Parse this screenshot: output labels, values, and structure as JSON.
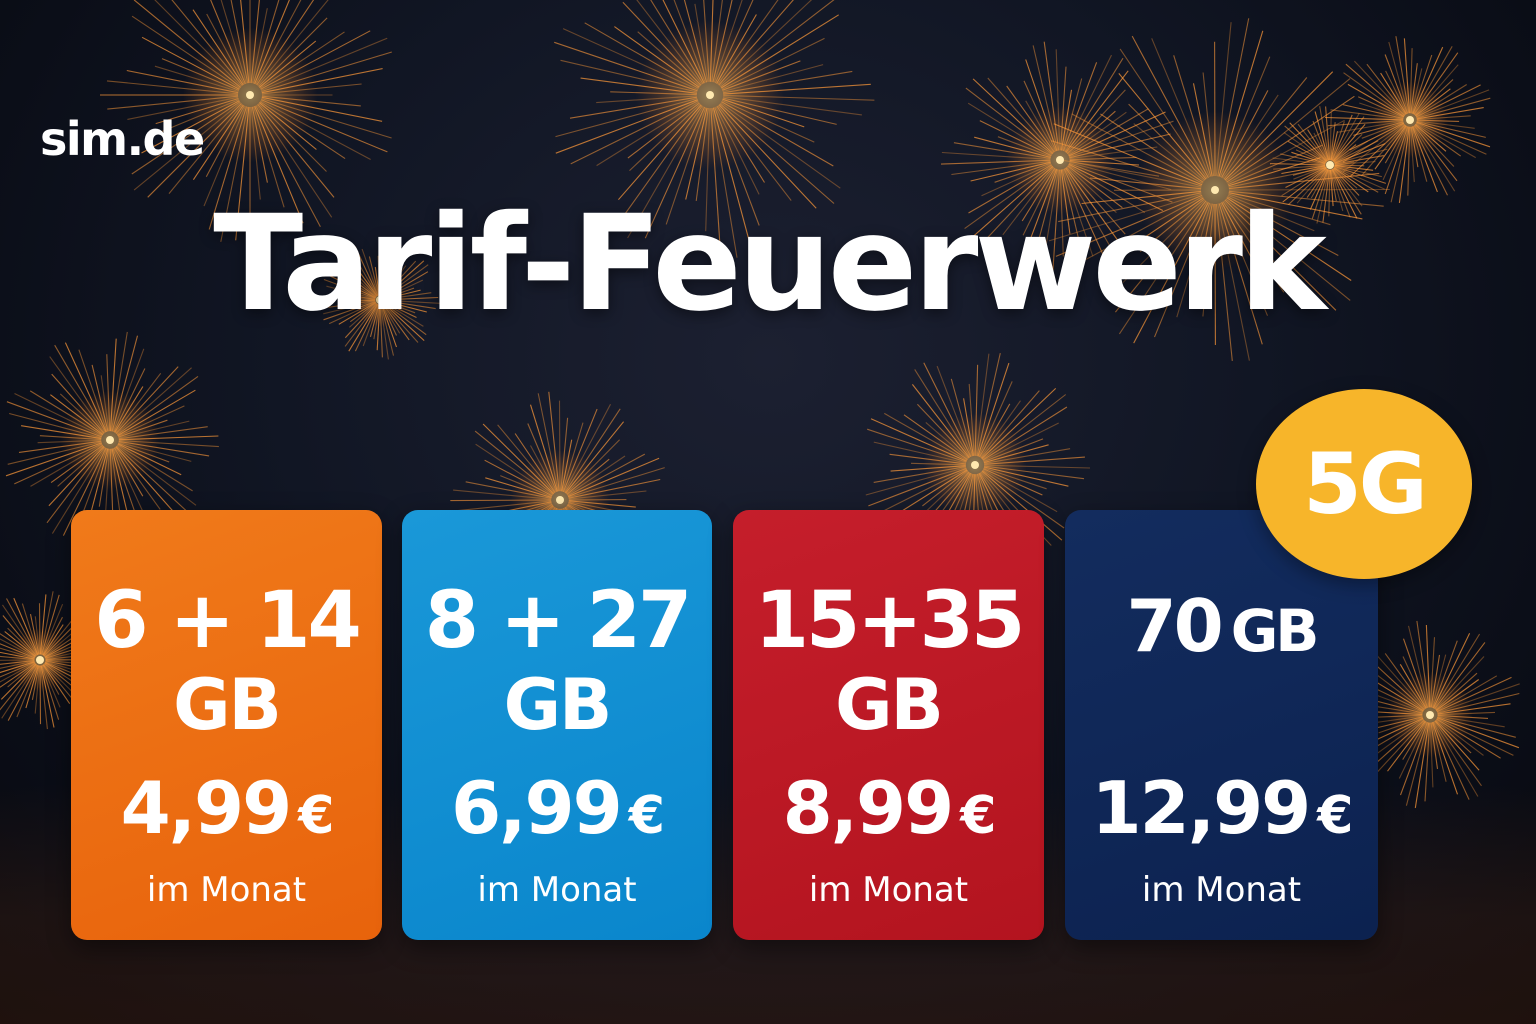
{
  "logo": "sim.de",
  "headline": "Tarif-Feuerwerk",
  "badge": "5G",
  "colors": {
    "background": "#111624",
    "firework": "#ff9a3a",
    "card_orange": "#e8630c",
    "card_blue": "#0a86cc",
    "card_red": "#b3141f",
    "card_navy": "#0c2250",
    "badge": "#f7b52a"
  },
  "tariffs": [
    {
      "data_amount": "6 + 14",
      "data_unit": "GB",
      "price": "4,99",
      "currency": "€",
      "period": "im Monat"
    },
    {
      "data_amount": "8 + 27",
      "data_unit": "GB",
      "price": "6,99",
      "currency": "€",
      "period": "im Monat"
    },
    {
      "data_amount": "15+35",
      "data_unit": "GB",
      "price": "8,99",
      "currency": "€",
      "period": "im Monat"
    },
    {
      "data_amount": "70",
      "data_unit": "GB",
      "price": "12,99",
      "currency": "€",
      "period": "im Monat"
    }
  ]
}
